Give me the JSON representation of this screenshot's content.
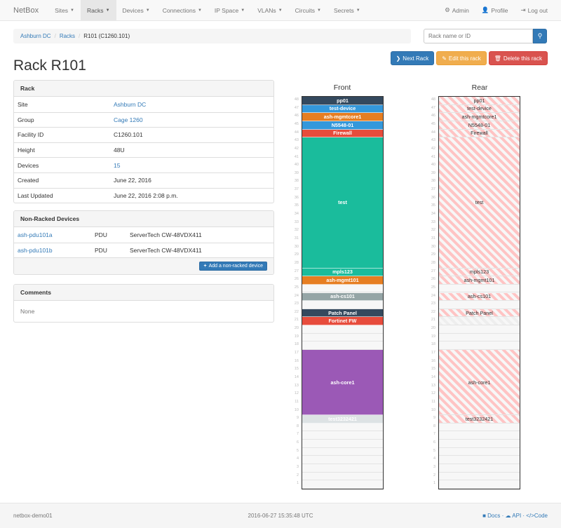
{
  "nav": {
    "brand": "NetBox",
    "items": [
      "Sites",
      "Racks",
      "Devices",
      "Connections",
      "IP Space",
      "VLANs",
      "Circuits",
      "Secrets"
    ],
    "active": "Racks",
    "right": [
      {
        "icon": "gear-icon",
        "label": "Admin"
      },
      {
        "icon": "user-icon",
        "label": "Profile"
      },
      {
        "icon": "logout-icon",
        "label": "Log out"
      }
    ]
  },
  "breadcrumb": [
    "Ashburn DC",
    "Racks",
    "R101 (C1260.101)"
  ],
  "search": {
    "placeholder": "Rack name or ID"
  },
  "actions": {
    "next": "Next Rack",
    "edit": "Edit this rack",
    "delete": "Delete this rack"
  },
  "title": "Rack R101",
  "rack_panel": {
    "heading": "Rack",
    "rows": [
      {
        "label": "Site",
        "value": "Ashburn DC",
        "link": true
      },
      {
        "label": "Group",
        "value": "Cage 1260",
        "link": true
      },
      {
        "label": "Facility ID",
        "value": "C1260.101",
        "link": false
      },
      {
        "label": "Height",
        "value": "48U",
        "link": false
      },
      {
        "label": "Devices",
        "value": "15",
        "link": true
      },
      {
        "label": "Created",
        "value": "June 22, 2016",
        "link": false
      },
      {
        "label": "Last Updated",
        "value": "June 22, 2016 2:08 p.m.",
        "link": false
      }
    ]
  },
  "nonracked": {
    "heading": "Non-Racked Devices",
    "rows": [
      {
        "name": "ash-pdu101a",
        "role": "PDU",
        "type": "ServerTech CW-48VDX411"
      },
      {
        "name": "ash-pdu101b",
        "role": "PDU",
        "type": "ServerTech CW-48VDX411"
      }
    ],
    "add_label": "Add a non-racked device"
  },
  "comments": {
    "heading": "Comments",
    "body": "None"
  },
  "elevation": {
    "front_label": "Front",
    "rear_label": "Rear",
    "units": 48,
    "devices": [
      {
        "name": "pp01",
        "position": 48,
        "height": 1,
        "color": "#34495e",
        "rear": "full"
      },
      {
        "name": "test-device",
        "position": 47,
        "height": 1,
        "color": "#3498db",
        "rear": "full"
      },
      {
        "name": "ash-mgmtcore1",
        "position": 46,
        "height": 1,
        "color": "#e67e22",
        "rear": "full"
      },
      {
        "name": "N5548-01",
        "position": 45,
        "height": 1,
        "color": "#3498db",
        "rear": "full"
      },
      {
        "name": "Firewall",
        "position": 44,
        "height": 1,
        "color": "#e74c3c",
        "rear": "full"
      },
      {
        "name": "test",
        "position": 28,
        "height": 16,
        "color": "#1abc9c",
        "rear": "full"
      },
      {
        "name": "mpls123",
        "position": 27,
        "height": 1,
        "color": "#1abc9c",
        "rear": "full"
      },
      {
        "name": "ash-mgmt101",
        "position": 26,
        "height": 1,
        "color": "#e67e22",
        "rear": "full"
      },
      {
        "name": "ash-cs101",
        "position": 24,
        "height": 1,
        "color": "#95a5a6",
        "rear": "full"
      },
      {
        "name": "Patch Panel",
        "position": 22,
        "height": 1,
        "color": "#34495e",
        "rear": "full"
      },
      {
        "name": "Fortinet FW",
        "position": 21,
        "height": 1,
        "color": "#e74c3c",
        "rear": "half"
      },
      {
        "name": "ash-core1",
        "position": 10,
        "height": 8,
        "color": "#9b59b6",
        "rear": "full"
      },
      {
        "name": "test3232421",
        "position": 9,
        "height": 1,
        "color": "#dde2e4",
        "rear": "full"
      }
    ]
  },
  "footer": {
    "hostname": "netbox-demo01",
    "timestamp": "2016-06-27 15:35:48 UTC",
    "links": [
      "Docs",
      "API",
      "Code"
    ]
  }
}
